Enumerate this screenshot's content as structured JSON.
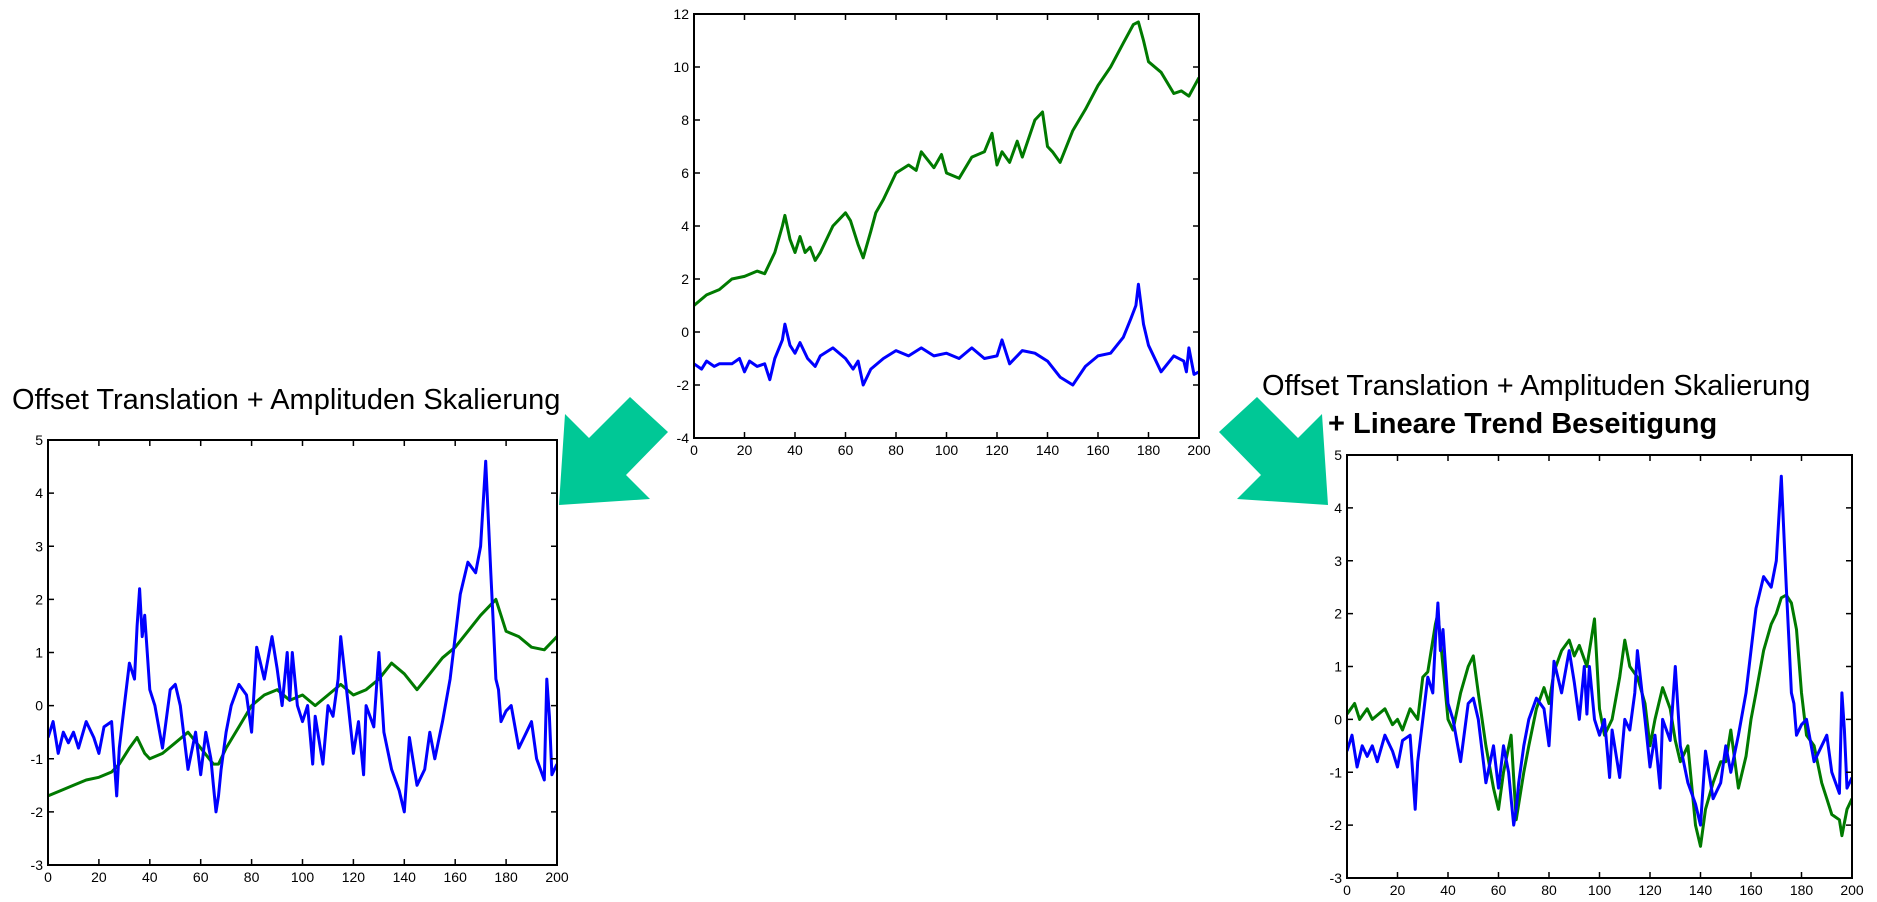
{
  "captions": {
    "left": "Offset Translation + Amplituden Skalierung",
    "right_line1": "Offset Translation + Amplituden Skalierung",
    "right_line2": "+ Lineare Trend Beseitigung"
  },
  "colors": {
    "series_blue": "#0000ff",
    "series_green": "#007a00",
    "arrow": "#00c896",
    "axis": "#000000"
  },
  "arrows": [
    {
      "id": "arrow-left",
      "direction": "down-left"
    },
    {
      "id": "arrow-right",
      "direction": "down-right"
    }
  ],
  "chart_data": [
    {
      "id": "top",
      "type": "line",
      "xlim": [
        0,
        200
      ],
      "ylim": [
        -4,
        12
      ],
      "xticks": [
        0,
        20,
        40,
        60,
        80,
        100,
        120,
        140,
        160,
        180,
        200
      ],
      "yticks": [
        -4,
        -2,
        0,
        2,
        4,
        6,
        8,
        10,
        12
      ],
      "grid": false,
      "series": [
        {
          "color": "green",
          "x": [
            0,
            5,
            10,
            15,
            20,
            25,
            28,
            32,
            35,
            36,
            38,
            40,
            42,
            44,
            46,
            48,
            50,
            55,
            60,
            62,
            65,
            67,
            70,
            72,
            75,
            80,
            85,
            88,
            90,
            95,
            98,
            100,
            105,
            110,
            115,
            118,
            120,
            122,
            125,
            128,
            130,
            135,
            138,
            140,
            142,
            145,
            150,
            155,
            160,
            165,
            170,
            174,
            176,
            178,
            180,
            185,
            190,
            193,
            196,
            200
          ],
          "y": [
            1.0,
            1.4,
            1.6,
            2.0,
            2.1,
            2.3,
            2.2,
            3.0,
            4.0,
            4.4,
            3.5,
            3.0,
            3.6,
            3.0,
            3.2,
            2.7,
            3.0,
            4.0,
            4.5,
            4.2,
            3.3,
            2.8,
            3.8,
            4.5,
            5.0,
            6.0,
            6.3,
            6.1,
            6.8,
            6.2,
            6.7,
            6.0,
            5.8,
            6.6,
            6.8,
            7.5,
            6.3,
            6.8,
            6.4,
            7.2,
            6.6,
            8.0,
            8.3,
            7.0,
            6.8,
            6.4,
            7.6,
            8.4,
            9.3,
            10.0,
            10.9,
            11.6,
            11.7,
            11.0,
            10.2,
            9.8,
            9.0,
            9.1,
            8.9,
            9.6
          ]
        },
        {
          "color": "blue",
          "x": [
            0,
            3,
            5,
            8,
            10,
            15,
            18,
            20,
            22,
            25,
            28,
            30,
            32,
            35,
            36,
            38,
            40,
            42,
            45,
            48,
            50,
            55,
            60,
            63,
            65,
            67,
            70,
            75,
            80,
            85,
            90,
            95,
            100,
            105,
            110,
            115,
            120,
            122,
            125,
            128,
            130,
            135,
            140,
            145,
            150,
            155,
            160,
            165,
            170,
            173,
            175,
            176,
            178,
            180,
            185,
            190,
            194,
            195,
            196,
            198,
            200
          ],
          "y": [
            -1.2,
            -1.4,
            -1.1,
            -1.3,
            -1.2,
            -1.2,
            -1.0,
            -1.5,
            -1.1,
            -1.3,
            -1.2,
            -1.8,
            -1.0,
            -0.3,
            0.3,
            -0.5,
            -0.8,
            -0.4,
            -1.0,
            -1.3,
            -0.9,
            -0.6,
            -1.0,
            -1.4,
            -1.1,
            -2.0,
            -1.4,
            -1.0,
            -0.7,
            -0.9,
            -0.6,
            -0.9,
            -0.8,
            -1.0,
            -0.6,
            -1.0,
            -0.9,
            -0.3,
            -1.2,
            -0.9,
            -0.7,
            -0.8,
            -1.1,
            -1.7,
            -2.0,
            -1.3,
            -0.9,
            -0.8,
            -0.2,
            0.5,
            1.0,
            1.8,
            0.3,
            -0.5,
            -1.5,
            -0.9,
            -1.1,
            -1.5,
            -0.6,
            -1.6,
            -1.5
          ]
        }
      ]
    },
    {
      "id": "bottom-left",
      "type": "line",
      "xlim": [
        0,
        200
      ],
      "ylim": [
        -3,
        5
      ],
      "xticks": [
        0,
        20,
        40,
        60,
        80,
        100,
        120,
        140,
        160,
        180,
        200
      ],
      "yticks": [
        -3,
        -2,
        -1,
        0,
        1,
        2,
        3,
        4,
        5
      ],
      "grid": false,
      "series": [
        {
          "color": "green",
          "x": [
            0,
            5,
            10,
            15,
            20,
            25,
            28,
            32,
            35,
            38,
            40,
            45,
            50,
            55,
            60,
            65,
            67,
            70,
            75,
            80,
            85,
            90,
            95,
            100,
            105,
            110,
            115,
            120,
            125,
            130,
            135,
            140,
            145,
            150,
            155,
            160,
            165,
            170,
            174,
            176,
            178,
            180,
            185,
            190,
            195,
            200
          ],
          "y": [
            -1.7,
            -1.6,
            -1.5,
            -1.4,
            -1.35,
            -1.25,
            -1.1,
            -0.8,
            -0.6,
            -0.9,
            -1.0,
            -0.9,
            -0.7,
            -0.5,
            -0.8,
            -1.1,
            -1.1,
            -0.8,
            -0.4,
            0.0,
            0.2,
            0.3,
            0.1,
            0.2,
            0.0,
            0.2,
            0.4,
            0.2,
            0.3,
            0.5,
            0.8,
            0.6,
            0.3,
            0.6,
            0.9,
            1.1,
            1.4,
            1.7,
            1.9,
            2.0,
            1.7,
            1.4,
            1.3,
            1.1,
            1.05,
            1.3
          ]
        },
        {
          "color": "blue",
          "x": [
            0,
            2,
            4,
            6,
            8,
            10,
            12,
            15,
            18,
            20,
            22,
            25,
            27,
            28,
            30,
            32,
            34,
            35,
            36,
            37,
            38,
            40,
            42,
            45,
            48,
            50,
            52,
            55,
            58,
            60,
            62,
            64,
            65,
            66,
            67,
            68,
            70,
            72,
            75,
            78,
            80,
            82,
            85,
            88,
            90,
            92,
            94,
            95,
            96,
            98,
            100,
            102,
            104,
            105,
            108,
            110,
            112,
            114,
            115,
            118,
            120,
            122,
            124,
            125,
            128,
            130,
            132,
            135,
            138,
            140,
            142,
            145,
            148,
            150,
            152,
            155,
            158,
            160,
            162,
            165,
            168,
            170,
            172,
            174,
            175,
            176,
            177,
            178,
            180,
            182,
            185,
            188,
            190,
            192,
            195,
            196,
            197,
            198,
            200
          ],
          "y": [
            -0.6,
            -0.3,
            -0.9,
            -0.5,
            -0.7,
            -0.5,
            -0.8,
            -0.3,
            -0.6,
            -0.9,
            -0.4,
            -0.3,
            -1.7,
            -0.8,
            0.0,
            0.8,
            0.5,
            1.5,
            2.2,
            1.3,
            1.7,
            0.3,
            0.0,
            -0.8,
            0.3,
            0.4,
            0.0,
            -1.2,
            -0.5,
            -1.3,
            -0.5,
            -1.0,
            -1.5,
            -2.0,
            -1.7,
            -1.2,
            -0.5,
            0.0,
            0.4,
            0.2,
            -0.5,
            1.1,
            0.5,
            1.3,
            0.7,
            0.0,
            1.0,
            0.1,
            1.0,
            0.0,
            -0.3,
            0.0,
            -1.1,
            -0.2,
            -1.1,
            0.0,
            -0.2,
            0.5,
            1.3,
            0.0,
            -0.9,
            -0.3,
            -1.3,
            0.0,
            -0.4,
            1.0,
            -0.5,
            -1.2,
            -1.6,
            -2.0,
            -0.6,
            -1.5,
            -1.2,
            -0.5,
            -1.0,
            -0.3,
            0.5,
            1.3,
            2.1,
            2.7,
            2.5,
            3.0,
            4.6,
            2.5,
            1.5,
            0.5,
            0.3,
            -0.3,
            -0.1,
            0.0,
            -0.8,
            -0.5,
            -0.3,
            -1.0,
            -1.4,
            0.5,
            -0.2,
            -1.3,
            -1.1
          ]
        }
      ]
    },
    {
      "id": "bottom-right",
      "type": "line",
      "xlim": [
        0,
        200
      ],
      "ylim": [
        -3,
        5
      ],
      "xticks": [
        0,
        20,
        40,
        60,
        80,
        100,
        120,
        140,
        160,
        180,
        200
      ],
      "yticks": [
        -3,
        -2,
        -1,
        0,
        1,
        2,
        3,
        4,
        5
      ],
      "grid": false,
      "series": [
        {
          "color": "green",
          "x": [
            0,
            3,
            5,
            8,
            10,
            15,
            18,
            20,
            22,
            25,
            28,
            30,
            32,
            35,
            36,
            38,
            40,
            42,
            45,
            48,
            50,
            52,
            55,
            58,
            60,
            62,
            65,
            67,
            70,
            72,
            75,
            78,
            80,
            82,
            85,
            88,
            90,
            92,
            95,
            98,
            100,
            102,
            105,
            108,
            110,
            112,
            115,
            118,
            120,
            122,
            125,
            128,
            130,
            132,
            135,
            138,
            140,
            142,
            145,
            148,
            150,
            152,
            155,
            158,
            160,
            162,
            165,
            168,
            170,
            172,
            174,
            176,
            178,
            180,
            182,
            185,
            188,
            190,
            192,
            195,
            196,
            198,
            200
          ],
          "y": [
            0.1,
            0.3,
            0.0,
            0.2,
            0.0,
            0.2,
            -0.1,
            0.0,
            -0.2,
            0.2,
            0.0,
            0.8,
            0.9,
            1.8,
            2.0,
            1.0,
            0.0,
            -0.2,
            0.5,
            1.0,
            1.2,
            0.5,
            -0.5,
            -1.3,
            -1.7,
            -1.0,
            -0.3,
            -1.9,
            -1.0,
            -0.5,
            0.2,
            0.6,
            0.3,
            0.9,
            1.3,
            1.5,
            1.2,
            1.4,
            1.0,
            1.9,
            0.2,
            -0.3,
            0.0,
            0.8,
            1.5,
            1.0,
            0.8,
            0.3,
            -0.5,
            0.0,
            0.6,
            0.2,
            -0.4,
            -0.8,
            -0.5,
            -2.0,
            -2.4,
            -1.7,
            -1.2,
            -0.8,
            -0.8,
            -0.2,
            -1.3,
            -0.7,
            0.0,
            0.5,
            1.3,
            1.8,
            2.0,
            2.3,
            2.35,
            2.2,
            1.7,
            0.5,
            -0.3,
            -0.5,
            -1.2,
            -1.5,
            -1.8,
            -1.9,
            -2.2,
            -1.7,
            -1.5
          ]
        },
        {
          "color": "blue",
          "x": [
            0,
            2,
            4,
            6,
            8,
            10,
            12,
            15,
            18,
            20,
            22,
            25,
            27,
            28,
            30,
            32,
            34,
            35,
            36,
            37,
            38,
            40,
            42,
            45,
            48,
            50,
            52,
            55,
            58,
            60,
            62,
            64,
            65,
            66,
            67,
            68,
            70,
            72,
            75,
            78,
            80,
            82,
            85,
            88,
            90,
            92,
            94,
            95,
            96,
            98,
            100,
            102,
            104,
            105,
            108,
            110,
            112,
            114,
            115,
            118,
            120,
            122,
            124,
            125,
            128,
            130,
            132,
            135,
            138,
            140,
            142,
            145,
            148,
            150,
            152,
            155,
            158,
            160,
            162,
            165,
            168,
            170,
            172,
            174,
            175,
            176,
            177,
            178,
            180,
            182,
            185,
            188,
            190,
            192,
            195,
            196,
            197,
            198,
            200
          ],
          "y": [
            -0.6,
            -0.3,
            -0.9,
            -0.5,
            -0.7,
            -0.5,
            -0.8,
            -0.3,
            -0.6,
            -0.9,
            -0.4,
            -0.3,
            -1.7,
            -0.8,
            0.0,
            0.8,
            0.5,
            1.5,
            2.2,
            1.3,
            1.7,
            0.3,
            0.0,
            -0.8,
            0.3,
            0.4,
            0.0,
            -1.2,
            -0.5,
            -1.3,
            -0.5,
            -1.0,
            -1.5,
            -2.0,
            -1.7,
            -1.2,
            -0.5,
            0.0,
            0.4,
            0.2,
            -0.5,
            1.1,
            0.5,
            1.3,
            0.7,
            0.0,
            1.0,
            0.1,
            1.0,
            0.0,
            -0.3,
            0.0,
            -1.1,
            -0.2,
            -1.1,
            0.0,
            -0.2,
            0.5,
            1.3,
            0.0,
            -0.9,
            -0.3,
            -1.3,
            0.0,
            -0.4,
            1.0,
            -0.5,
            -1.2,
            -1.6,
            -2.0,
            -0.6,
            -1.5,
            -1.2,
            -0.5,
            -1.0,
            -0.3,
            0.5,
            1.3,
            2.1,
            2.7,
            2.5,
            3.0,
            4.6,
            2.5,
            1.5,
            0.5,
            0.3,
            -0.3,
            -0.1,
            0.0,
            -0.8,
            -0.5,
            -0.3,
            -1.0,
            -1.4,
            0.5,
            -0.2,
            -1.3,
            -1.1
          ]
        }
      ]
    }
  ]
}
